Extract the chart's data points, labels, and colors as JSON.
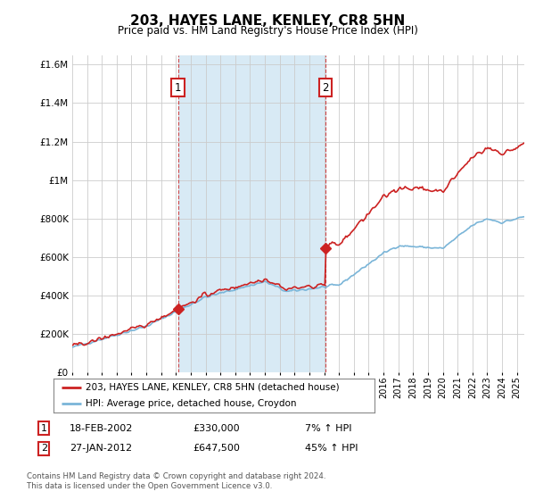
{
  "title": "203, HAYES LANE, KENLEY, CR8 5HN",
  "subtitle": "Price paid vs. HM Land Registry's House Price Index (HPI)",
  "legend_line1": "203, HAYES LANE, KENLEY, CR8 5HN (detached house)",
  "legend_line2": "HPI: Average price, detached house, Croydon",
  "sale1_date": "18-FEB-2002",
  "sale1_price": 330000,
  "sale1_year": 2002.13,
  "sale2_date": "27-JAN-2012",
  "sale2_price": 647500,
  "sale2_year": 2012.08,
  "sale1_hpi": "7% ↑ HPI",
  "sale2_hpi": "45% ↑ HPI",
  "footer1": "Contains HM Land Registry data © Crown copyright and database right 2024.",
  "footer2": "This data is licensed under the Open Government Licence v3.0.",
  "hpi_color": "#7ab5d8",
  "property_color": "#cc2222",
  "shade_color": "#d8eaf5",
  "background_color": "#ffffff",
  "grid_color": "#cccccc",
  "ylim": [
    0,
    1650000
  ],
  "xlim_start": 1995.0,
  "xlim_end": 2025.5
}
